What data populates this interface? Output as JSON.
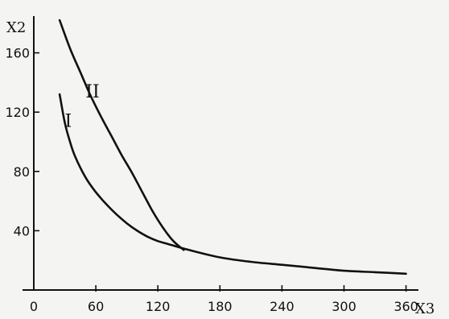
{
  "chart_data": {
    "type": "line",
    "xlabel": "X3",
    "ylabel": "X2",
    "xlim": [
      0,
      390
    ],
    "ylim": [
      0,
      180
    ],
    "x_ticks": [
      0,
      60,
      120,
      180,
      240,
      300,
      360
    ],
    "y_ticks": [
      40,
      80,
      120,
      160
    ],
    "grid": false,
    "legend": "none",
    "series": [
      {
        "name": "I",
        "label_at": [
          30,
          110
        ],
        "points": [
          [
            25,
            132
          ],
          [
            30,
            113
          ],
          [
            35,
            100
          ],
          [
            40,
            90
          ],
          [
            50,
            76
          ],
          [
            60,
            66
          ],
          [
            70,
            58
          ],
          [
            80,
            51
          ],
          [
            90,
            45
          ],
          [
            100,
            40
          ],
          [
            110,
            36
          ],
          [
            120,
            33
          ],
          [
            130,
            31
          ],
          [
            150,
            27
          ],
          [
            180,
            22
          ],
          [
            210,
            19
          ],
          [
            240,
            17
          ],
          [
            270,
            15
          ],
          [
            300,
            13
          ],
          [
            330,
            12
          ],
          [
            360,
            11
          ]
        ]
      },
      {
        "name": "II",
        "label_at": [
          50,
          130
        ],
        "points": [
          [
            25,
            182
          ],
          [
            35,
            163
          ],
          [
            45,
            147
          ],
          [
            55,
            131
          ],
          [
            65,
            117
          ],
          [
            75,
            104
          ],
          [
            85,
            91
          ],
          [
            95,
            79
          ],
          [
            105,
            66
          ],
          [
            115,
            53
          ],
          [
            125,
            42
          ],
          [
            135,
            33
          ],
          [
            145,
            27
          ]
        ]
      }
    ]
  }
}
